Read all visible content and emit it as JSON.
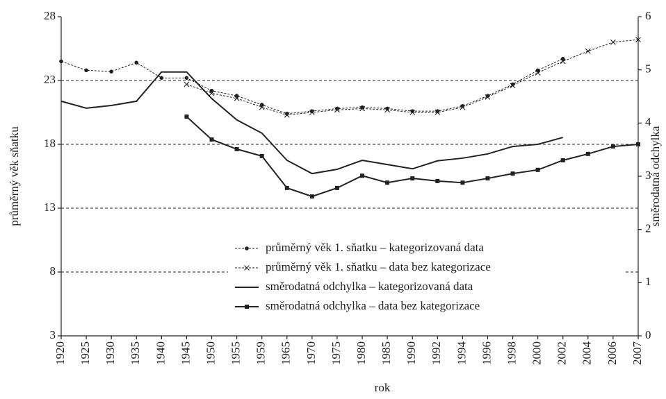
{
  "chart_data": {
    "type": "line",
    "categories": [
      "1920",
      "1925",
      "1930",
      "1935",
      "1940",
      "1945",
      "1950",
      "1955",
      "1959",
      "1965",
      "1970",
      "1975",
      "1980",
      "1985",
      "1990",
      "1992",
      "1994",
      "1996",
      "1998",
      "2000",
      "2002",
      "2004",
      "2006",
      "2007"
    ],
    "xlabel": "rok",
    "ylabel": "průměrný věk sňatku",
    "y2label": "směrodatná odchylka",
    "ylim": [
      3,
      28
    ],
    "yticks": [
      3,
      8,
      13,
      18,
      23,
      28
    ],
    "y2lim": [
      0,
      6
    ],
    "y2ticks": [
      0,
      1,
      2,
      3,
      4,
      5,
      6
    ],
    "grid": true,
    "legend": "lower right",
    "series": [
      {
        "name": "průměrný věk 1. sňatku – kategorizovaná data",
        "color": "#222",
        "line_style": "dotted",
        "marker": "circle",
        "axis": "y",
        "values": [
          24.5,
          23.8,
          23.7,
          24.4,
          23.2,
          23.2,
          22.2,
          21.8,
          21.1,
          20.4,
          20.6,
          20.8,
          20.9,
          20.8,
          20.6,
          20.6,
          21.0,
          21.8,
          22.7,
          23.8,
          24.7,
          null,
          null,
          null
        ]
      },
      {
        "name": "průměrný věk 1. sňatku – data bez kategorizace",
        "color": "#222",
        "line_style": "dotted",
        "marker": "cross",
        "axis": "y",
        "values": [
          null,
          null,
          null,
          null,
          null,
          22.7,
          22.0,
          21.6,
          20.9,
          20.3,
          20.5,
          20.7,
          20.8,
          20.7,
          20.5,
          20.5,
          20.9,
          21.7,
          22.6,
          23.6,
          24.5,
          25.3,
          26.0,
          26.2
        ]
      },
      {
        "name": "směrodatná odchylka – kategorizovaná data",
        "color": "#222",
        "line_style": "solid",
        "marker": "none",
        "axis": "y2",
        "values": [
          4.41,
          4.28,
          4.33,
          4.41,
          4.96,
          4.96,
          4.46,
          4.06,
          3.81,
          3.3,
          3.05,
          3.13,
          3.3,
          3.22,
          3.14,
          3.29,
          3.34,
          3.42,
          3.56,
          3.6,
          3.73,
          null,
          null,
          null
        ]
      },
      {
        "name": "směrodatná odchylka – data bez kategorizace",
        "color": "#222",
        "line_style": "solid",
        "marker": "square",
        "axis": "y2",
        "values": [
          null,
          null,
          null,
          null,
          null,
          4.12,
          3.69,
          3.51,
          3.38,
          2.78,
          2.62,
          2.78,
          3.01,
          2.88,
          2.96,
          2.91,
          2.88,
          2.96,
          3.05,
          3.12,
          3.3,
          3.42,
          3.56,
          3.6
        ]
      }
    ]
  }
}
